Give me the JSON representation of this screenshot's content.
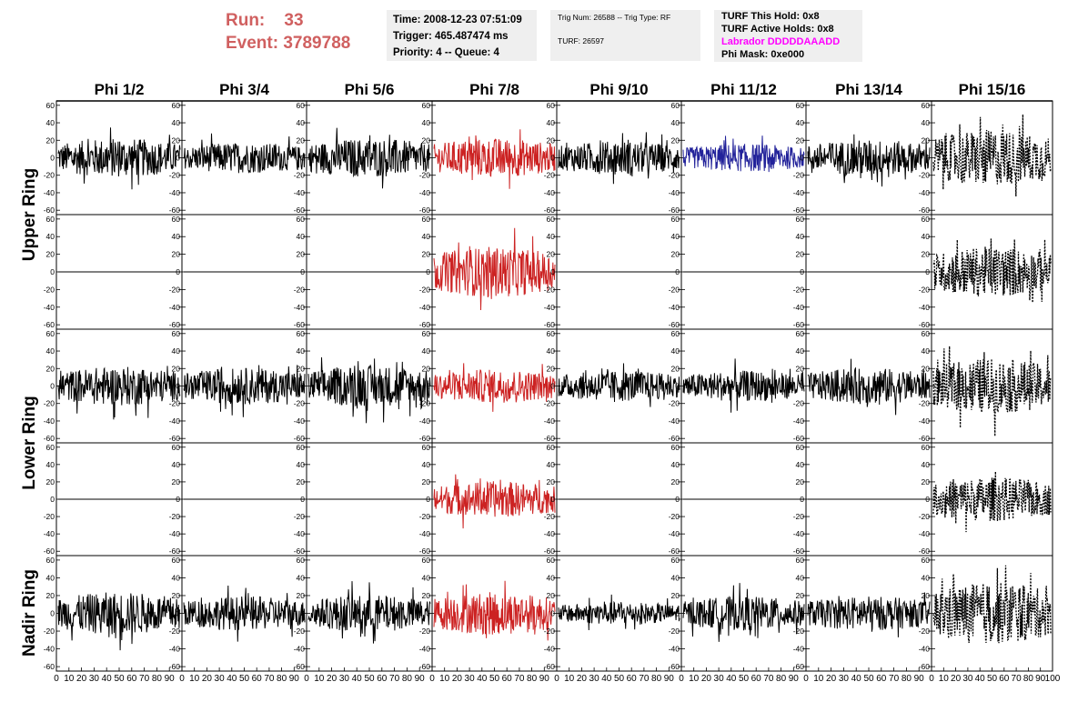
{
  "header": {
    "run_label": "Run:",
    "run_value": "33",
    "event_label": "Event:",
    "event_value": "3789788",
    "time_line": "Time: 2008-12-23 07:51:09",
    "trigger_line": "Trigger: 465.487474 ms",
    "priority_line": "Priority: 4 -- Queue: 4",
    "trig_num_line": "Trig Num: 26588 -- Trig Type: RF",
    "turf_line": "TURF: 26597",
    "turf_hold_line": "TURF This Hold: 0x8",
    "turf_active_line": "TURF Active Holds: 0x8",
    "labrador_line": "Labrador DDDDDAAADD",
    "phi_mask_line": "Phi Mask: 0xe000"
  },
  "colors": {
    "run_event": "#d06060",
    "labrador": "#ff00ff",
    "trace_default": "#000000",
    "trace_triggered": "#cc2222",
    "trace_masked": "#22229a"
  },
  "chart_data": {
    "type": "line",
    "columns": [
      "Phi 1/2",
      "Phi 3/4",
      "Phi 5/6",
      "Phi 7/8",
      "Phi 9/10",
      "Phi 11/12",
      "Phi 13/14",
      "Phi 15/16"
    ],
    "rows": [
      "Upper Ring",
      "Lower Ring",
      "Nadir Ring"
    ],
    "ylim": [
      -65,
      65
    ],
    "y_ticks": [
      -60,
      -40,
      -20,
      0,
      20,
      40,
      60
    ],
    "xlim": [
      0,
      100
    ],
    "x_ticks": [
      0,
      10,
      20,
      30,
      40,
      50,
      60,
      70,
      80,
      90,
      100
    ],
    "panels": [
      {
        "name": "upper-top",
        "traces": [
          {
            "style": "normal",
            "amp": 14
          },
          {
            "style": "normal",
            "amp": 11
          },
          {
            "style": "normal",
            "amp": 14
          },
          {
            "style": "triggered",
            "amp": 14
          },
          {
            "style": "normal",
            "amp": 12
          },
          {
            "style": "masked",
            "amp": 10
          },
          {
            "style": "normal",
            "amp": 13
          },
          {
            "style": "dashed",
            "amp": 20
          }
        ]
      },
      {
        "name": "upper-bottom",
        "traces": [
          {
            "style": "flat",
            "amp": 0
          },
          {
            "style": "flat",
            "amp": 0
          },
          {
            "style": "flat",
            "amp": 0
          },
          {
            "style": "triggered",
            "amp": 18
          },
          {
            "style": "flat",
            "amp": 0
          },
          {
            "style": "flat",
            "amp": 0
          },
          {
            "style": "flat",
            "amp": 0
          },
          {
            "style": "dashed",
            "amp": 18
          }
        ]
      },
      {
        "name": "lower-top",
        "traces": [
          {
            "style": "normal",
            "amp": 14
          },
          {
            "style": "normal",
            "amp": 13
          },
          {
            "style": "normal",
            "amp": 15
          },
          {
            "style": "triggered",
            "amp": 12
          },
          {
            "style": "normal",
            "amp": 11
          },
          {
            "style": "normal",
            "amp": 11
          },
          {
            "style": "normal",
            "amp": 13
          },
          {
            "style": "dashed",
            "amp": 20
          }
        ]
      },
      {
        "name": "lower-bottom",
        "traces": [
          {
            "style": "flat",
            "amp": 0
          },
          {
            "style": "flat",
            "amp": 0
          },
          {
            "style": "flat",
            "amp": 0
          },
          {
            "style": "triggered",
            "amp": 13
          },
          {
            "style": "flat",
            "amp": 0
          },
          {
            "style": "flat",
            "amp": 0
          },
          {
            "style": "flat",
            "amp": 0
          },
          {
            "style": "dashed",
            "amp": 16
          }
        ]
      },
      {
        "name": "nadir",
        "traces": [
          {
            "style": "normal",
            "amp": 15
          },
          {
            "style": "normal",
            "amp": 12
          },
          {
            "style": "normal",
            "amp": 13
          },
          {
            "style": "triggered",
            "amp": 15
          },
          {
            "style": "normal",
            "amp": 8
          },
          {
            "style": "normal",
            "amp": 12
          },
          {
            "style": "normal",
            "amp": 12
          },
          {
            "style": "dashed",
            "amp": 22
          }
        ]
      }
    ]
  }
}
